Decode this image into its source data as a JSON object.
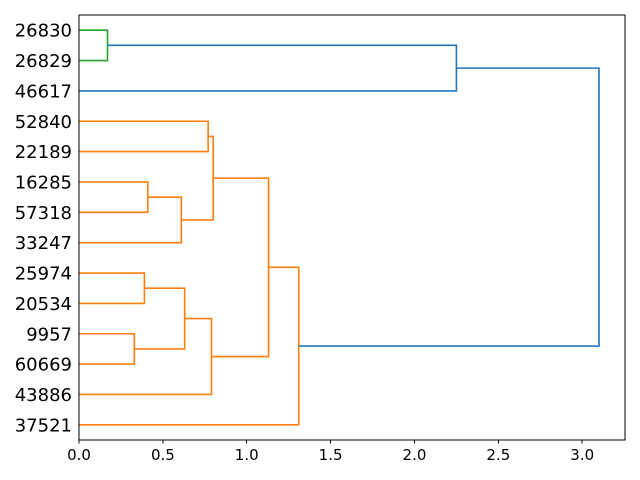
{
  "figure": {
    "background": "#ffffff"
  },
  "chart_data": {
    "type": "dendrogram",
    "orientation": "right",
    "title": "",
    "xlabel": "",
    "ylabel": "",
    "n_leaves": 14,
    "leaf_labels": [
      "26830",
      "26829",
      "46617",
      "52840",
      "22189",
      "16285",
      "57318",
      "33247",
      "25974",
      "20534",
      "9957",
      "60669",
      "43886",
      "37521"
    ],
    "leaf_positions": [
      5,
      15,
      25,
      35,
      45,
      55,
      65,
      75,
      85,
      95,
      105,
      115,
      125,
      135
    ],
    "leaf_axis_range": [
      0,
      140
    ],
    "x_axis": {
      "tick_values": [
        0.0,
        0.5,
        1.0,
        1.5,
        2.0,
        2.5,
        3.0
      ],
      "tick_labels": [
        "0.0",
        "0.5",
        "1.0",
        "1.5",
        "2.0",
        "2.5",
        "3.0"
      ],
      "lim": [
        0,
        3.255
      ]
    },
    "max_merge_distance": 3.1,
    "colors": {
      "blue": "#1f77b4",
      "orange": "#ff7f0e",
      "green": "#2ca02c",
      "axis": "#000000"
    },
    "links": [
      {
        "color": "green",
        "x": [
          0,
          0.17,
          0.17,
          0
        ],
        "y": [
          5,
          5,
          15,
          15
        ],
        "merge_distance": 0.17,
        "members": [
          "26830",
          "26829"
        ]
      },
      {
        "color": "blue",
        "x": [
          0.17,
          2.25,
          2.25,
          0
        ],
        "y": [
          10,
          10,
          25,
          25
        ],
        "merge_distance": 2.25,
        "members": [
          "26830+26829",
          "46617"
        ]
      },
      {
        "color": "orange",
        "x": [
          0,
          0.77,
          0.77,
          0
        ],
        "y": [
          35,
          35,
          45,
          45
        ],
        "merge_distance": 0.77,
        "members": [
          "52840",
          "22189"
        ]
      },
      {
        "color": "orange",
        "x": [
          0,
          0.41,
          0.41,
          0
        ],
        "y": [
          55,
          55,
          65,
          65
        ],
        "merge_distance": 0.41,
        "members": [
          "16285",
          "57318"
        ]
      },
      {
        "color": "orange",
        "x": [
          0.41,
          0.61,
          0.61,
          0
        ],
        "y": [
          60,
          60,
          75,
          75
        ],
        "merge_distance": 0.61,
        "members": [
          "16285+57318",
          "33247"
        ]
      },
      {
        "color": "orange",
        "x": [
          0.77,
          0.8,
          0.8,
          0.61
        ],
        "y": [
          40,
          40,
          67.5,
          67.5
        ],
        "merge_distance": 0.8,
        "members": [
          "52840+22189",
          "16285+57318+33247"
        ]
      },
      {
        "color": "orange",
        "x": [
          0,
          0.39,
          0.39,
          0
        ],
        "y": [
          85,
          85,
          95,
          95
        ],
        "merge_distance": 0.39,
        "members": [
          "25974",
          "20534"
        ]
      },
      {
        "color": "orange",
        "x": [
          0,
          0.33,
          0.33,
          0
        ],
        "y": [
          105,
          105,
          115,
          115
        ],
        "merge_distance": 0.33,
        "members": [
          "9957",
          "60669"
        ]
      },
      {
        "color": "orange",
        "x": [
          0.39,
          0.63,
          0.63,
          0.33
        ],
        "y": [
          90,
          90,
          110,
          110
        ],
        "merge_distance": 0.63,
        "members": [
          "25974+20534",
          "9957+60669"
        ]
      },
      {
        "color": "orange",
        "x": [
          0.63,
          0.79,
          0.79,
          0
        ],
        "y": [
          100,
          100,
          125,
          125
        ],
        "merge_distance": 0.79,
        "members": [
          "25974+20534+9957+60669",
          "43886"
        ]
      },
      {
        "color": "orange",
        "x": [
          0.8,
          1.13,
          1.13,
          0.79
        ],
        "y": [
          53.75,
          53.75,
          112.5,
          112.5
        ],
        "merge_distance": 1.13,
        "members": [
          "upper-orange-group",
          "lower-orange-group"
        ]
      },
      {
        "color": "orange",
        "x": [
          1.13,
          1.31,
          1.31,
          0
        ],
        "y": [
          83.125,
          83.125,
          135,
          135
        ],
        "merge_distance": 1.31,
        "members": [
          "orange-group",
          "37521"
        ]
      },
      {
        "color": "blue",
        "x": [
          2.25,
          3.1,
          3.1,
          1.31
        ],
        "y": [
          17.5,
          17.5,
          109.0625,
          109.0625
        ],
        "merge_distance": 3.1,
        "members": [
          "26830+26829+46617",
          "all-orange-cluster"
        ]
      }
    ],
    "grid": false,
    "legend": null
  }
}
